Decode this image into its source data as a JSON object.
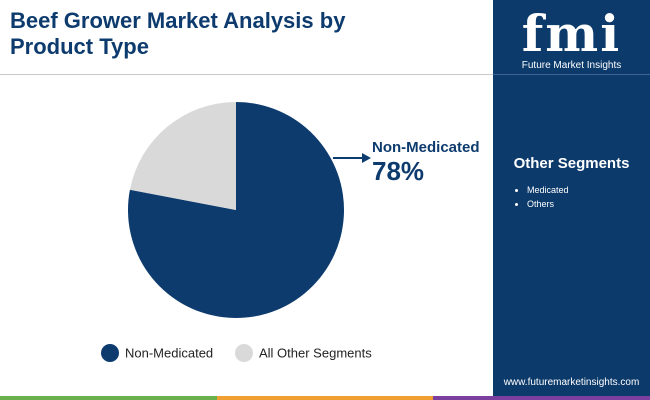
{
  "chart_data": {
    "type": "pie",
    "title": "Beef Grower Market Analysis by Product Type",
    "categories": [
      "Non-Medicated",
      "All Other Segments"
    ],
    "values": [
      78,
      22
    ],
    "value_labels": [
      "78%",
      null
    ],
    "colors": [
      "#0d3b6e",
      "#d9d9d9"
    ]
  },
  "sidebar": {
    "title": "Other Segments",
    "items": [
      "Medicated",
      "Others"
    ]
  },
  "logo": {
    "mark": "fmi",
    "text": "Future Market Insights"
  },
  "footer": {
    "url": "www.futuremarketinsights.com"
  }
}
